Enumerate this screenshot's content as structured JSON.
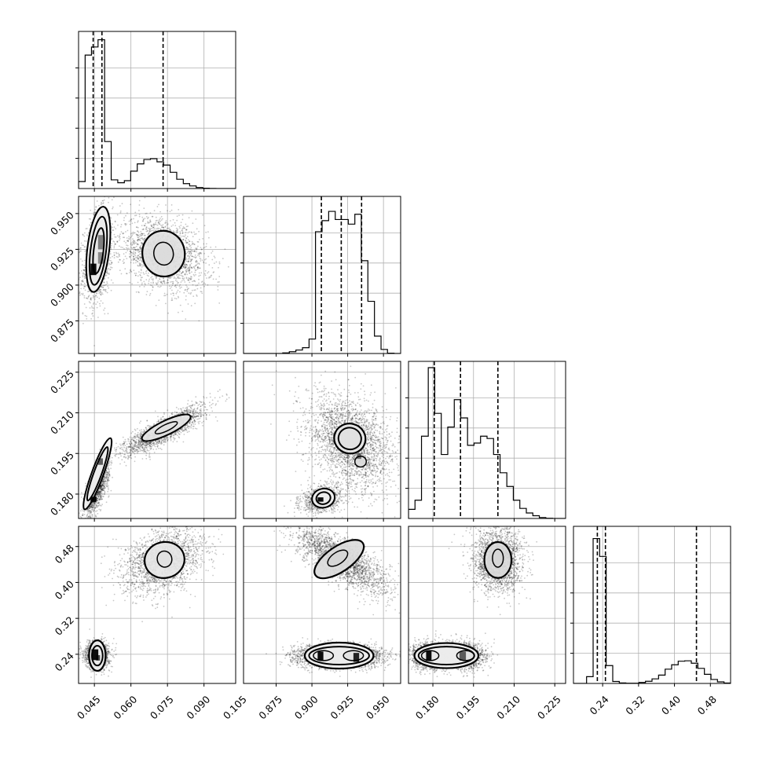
{
  "chart_data": {
    "type": "corner",
    "parameters": [
      {
        "ticks": [
          0.045,
          0.06,
          0.075,
          0.09,
          0.105
        ],
        "tick_labels": [
          "0.045",
          "0.060",
          "0.075",
          "0.090",
          "0.105"
        ],
        "range": [
          0.0385,
          0.103
        ]
      },
      {
        "ticks": [
          0.875,
          0.9,
          0.925,
          0.95
        ],
        "tick_labels": [
          "0.875",
          "0.900",
          "0.925",
          "0.950"
        ],
        "range": [
          0.8522,
          0.962
        ]
      },
      {
        "ticks": [
          0.18,
          0.195,
          0.21,
          0.225
        ],
        "tick_labels": [
          "0.180",
          "0.195",
          "0.210",
          "0.225"
        ],
        "range": [
          0.171,
          0.229
        ]
      },
      {
        "ticks": [
          0.24,
          0.32,
          0.4,
          0.48
        ],
        "tick_labels": [
          "0.24",
          "0.32",
          "0.40",
          "0.48"
        ],
        "range": [
          0.175,
          0.525
        ]
      }
    ],
    "histograms": [
      {
        "edges": [
          0.0385,
          0.0412,
          0.0438,
          0.0465,
          0.0492,
          0.0519,
          0.0546,
          0.0573,
          0.0599,
          0.0626,
          0.0653,
          0.068,
          0.0707,
          0.0734,
          0.0761,
          0.0788,
          0.0815,
          0.0841,
          0.0868,
          0.0895,
          0.0922,
          0.0949,
          0.0976,
          0.1003,
          0.103
        ],
        "counts": [
          240,
          4600,
          4880,
          5130,
          1620,
          300,
          200,
          270,
          600,
          850,
          1000,
          1030,
          920,
          810,
          560,
          320,
          170,
          90,
          35,
          12,
          5,
          0,
          0,
          0
        ],
        "quantiles": [
          0.0445,
          0.0481,
          0.0732
        ],
        "ymax": 5200
      },
      {
        "edges": [
          0.8522,
          0.8568,
          0.8613,
          0.8659,
          0.8705,
          0.8751,
          0.8796,
          0.8842,
          0.8888,
          0.8934,
          0.898,
          0.9025,
          0.9071,
          0.9117,
          0.9163,
          0.9208,
          0.9254,
          0.93,
          0.9345,
          0.9391,
          0.9437,
          0.9483,
          0.9528,
          0.9574,
          0.962
        ],
        "counts": [
          0,
          0,
          0,
          0,
          0,
          0,
          20,
          60,
          120,
          200,
          500,
          4200,
          4580,
          4900,
          4620,
          4620,
          4460,
          4800,
          3200,
          1800,
          600,
          140,
          10,
          0
        ],
        "quantiles": [
          0.9066,
          0.9205,
          0.9347
        ],
        "ymax": 5200
      },
      {
        "edges": [
          0.171,
          0.1734,
          0.1758,
          0.1783,
          0.1807,
          0.1831,
          0.1855,
          0.1879,
          0.1903,
          0.1928,
          0.1952,
          0.1976,
          0.2,
          0.2024,
          0.2048,
          0.2073,
          0.2097,
          0.2121,
          0.2145,
          0.2169,
          0.2193,
          0.2217,
          0.2242,
          0.2266,
          0.229
        ],
        "counts": [
          200,
          400,
          1800,
          3300,
          2300,
          1400,
          2000,
          2600,
          2200,
          1600,
          1650,
          1800,
          1750,
          1400,
          1000,
          700,
          400,
          220,
          120,
          60,
          20,
          5,
          0,
          0
        ],
        "quantiles": [
          0.1805,
          0.1902,
          0.204
        ],
        "ymax": 3300
      },
      {
        "edges": [
          0.175,
          0.1896,
          0.2042,
          0.2188,
          0.2333,
          0.2479,
          0.2625,
          0.2771,
          0.2917,
          0.3063,
          0.3208,
          0.3354,
          0.35,
          0.3646,
          0.3792,
          0.3937,
          0.4083,
          0.4229,
          0.4375,
          0.4521,
          0.4667,
          0.4813,
          0.4958,
          0.5104,
          0.525
        ],
        "counts": [
          0,
          0,
          170,
          3650,
          3200,
          450,
          50,
          12,
          5,
          5,
          25,
          55,
          115,
          210,
          360,
          470,
          560,
          570,
          510,
          380,
          230,
          100,
          40,
          10
        ],
        "quantiles": [
          0.2282,
          0.2462,
          0.449
        ],
        "ymax": 3800
      }
    ],
    "pairs": [
      {
        "row": 1,
        "col": 0,
        "blobs": [
          {
            "cx": 0.0465,
            "cy": 0.92,
            "sx": 0.0024,
            "sy": 0.013,
            "rho": 0.3,
            "n": 1300
          },
          {
            "cx": 0.0475,
            "cy": 0.939,
            "sx": 0.0014,
            "sy": 0.006,
            "rho": 0.0,
            "n": 250
          },
          {
            "cx": 0.0735,
            "cy": 0.922,
            "sx": 0.007,
            "sy": 0.01,
            "rho": -0.3,
            "n": 2000
          }
        ],
        "contours": [
          {
            "cx": 0.0466,
            "cy": 0.925,
            "rx": 0.0045,
            "ry": 0.03,
            "rot": 0.12,
            "w": 2
          },
          {
            "cx": 0.0466,
            "cy": 0.924,
            "rx": 0.0032,
            "ry": 0.024,
            "rot": 0.12,
            "w": 2
          },
          {
            "cx": 0.0467,
            "cy": 0.924,
            "rx": 0.002,
            "ry": 0.016,
            "rot": 0.12,
            "w": 2
          },
          {
            "cx": 0.0734,
            "cy": 0.922,
            "rx": 0.0087,
            "ry": 0.016,
            "rot": -0.15,
            "w": 2.2
          },
          {
            "cx": 0.0734,
            "cy": 0.922,
            "rx": 0.004,
            "ry": 0.008,
            "rot": -0.15,
            "w": 1.5
          }
        ],
        "dark": [
          [
            0.0446,
            0.911,
            0.0012,
            0.004,
            0.95
          ],
          [
            0.0477,
            0.93,
            0.0012,
            0.005,
            0.45
          ],
          [
            0.0477,
            0.919,
            0.0012,
            0.004,
            0.4
          ]
        ]
      },
      {
        "row": 2,
        "col": 0,
        "blobs": [
          {
            "cx": 0.046,
            "cy": 0.182,
            "sx": 0.002,
            "sy": 0.004,
            "rho": 0.7,
            "n": 1300
          },
          {
            "cx": 0.0735,
            "cy": 0.2035,
            "sx": 0.0065,
            "sy": 0.0035,
            "rho": 0.85,
            "n": 2000
          }
        ],
        "contours": [
          {
            "cx": 0.0463,
            "cy": 0.1875,
            "rx": 0.0024,
            "ry": 0.014,
            "rot": 0.35,
            "w": 2
          },
          {
            "cx": 0.0463,
            "cy": 0.1875,
            "rx": 0.0016,
            "ry": 0.0105,
            "rot": 0.35,
            "w": 2
          },
          {
            "cx": 0.0745,
            "cy": 0.2045,
            "rx": 0.011,
            "ry": 0.0026,
            "rot": -0.45,
            "w": 2
          },
          {
            "cx": 0.0745,
            "cy": 0.2045,
            "rx": 0.005,
            "ry": 0.0012,
            "rot": -0.45,
            "w": 1.5
          }
        ],
        "dark": [
          [
            0.0446,
            0.178,
            0.0012,
            0.001,
            0.95
          ],
          [
            0.0475,
            0.192,
            0.001,
            0.0012,
            0.6
          ]
        ]
      },
      {
        "row": 3,
        "col": 0,
        "blobs": [
          {
            "cx": 0.046,
            "cy": 0.238,
            "sx": 0.002,
            "sy": 0.012,
            "rho": 0.0,
            "n": 1400
          },
          {
            "cx": 0.0735,
            "cy": 0.448,
            "sx": 0.0065,
            "sy": 0.028,
            "rho": 0.35,
            "n": 2000
          }
        ],
        "contours": [
          {
            "cx": 0.0462,
            "cy": 0.237,
            "rx": 0.0034,
            "ry": 0.034,
            "rot": 0.0,
            "w": 2.2
          },
          {
            "cx": 0.0462,
            "cy": 0.237,
            "rx": 0.0022,
            "ry": 0.022,
            "rot": 0.0,
            "w": 2
          },
          {
            "cx": 0.0738,
            "cy": 0.45,
            "rx": 0.0082,
            "ry": 0.04,
            "rot": -0.2,
            "w": 2.2
          },
          {
            "cx": 0.0738,
            "cy": 0.452,
            "rx": 0.003,
            "ry": 0.018,
            "rot": -0.2,
            "w": 1.5
          }
        ],
        "dark": [
          [
            0.0452,
            0.239,
            0.0014,
            0.012,
            0.95
          ],
          [
            0.0465,
            0.232,
            0.0008,
            0.006,
            0.7
          ]
        ]
      },
      {
        "row": 2,
        "col": 1,
        "blobs": [
          {
            "cx": 0.907,
            "cy": 0.178,
            "sx": 0.006,
            "sy": 0.002,
            "rho": 0.3,
            "n": 900
          },
          {
            "cx": 0.927,
            "cy": 0.199,
            "sx": 0.012,
            "sy": 0.007,
            "rho": -0.3,
            "n": 2600
          }
        ],
        "contours": [
          {
            "cx": 0.908,
            "cy": 0.1785,
            "rx": 0.008,
            "ry": 0.0035,
            "rot": -0.25,
            "w": 2
          },
          {
            "cx": 0.908,
            "cy": 0.1785,
            "rx": 0.005,
            "ry": 0.0022,
            "rot": -0.25,
            "w": 2
          },
          {
            "cx": 0.9265,
            "cy": 0.2005,
            "rx": 0.011,
            "ry": 0.0055,
            "rot": 0.25,
            "w": 2.2
          },
          {
            "cx": 0.9265,
            "cy": 0.2005,
            "rx": 0.008,
            "ry": 0.004,
            "rot": 0.25,
            "w": 2
          },
          {
            "cx": 0.934,
            "cy": 0.192,
            "rx": 0.004,
            "ry": 0.002,
            "rot": 0.0,
            "w": 1.5
          }
        ],
        "dark": [
          [
            0.906,
            0.178,
            0.002,
            0.0008,
            0.95
          ],
          [
            0.933,
            0.194,
            0.0015,
            0.001,
            0.5
          ]
        ]
      },
      {
        "row": 3,
        "col": 1,
        "blobs": [
          {
            "cx": 0.908,
            "cy": 0.236,
            "sx": 0.009,
            "sy": 0.01,
            "rho": 0.0,
            "n": 1500
          },
          {
            "cx": 0.93,
            "cy": 0.236,
            "sx": 0.009,
            "sy": 0.01,
            "rho": 0.0,
            "n": 1300
          },
          {
            "cx": 0.92,
            "cy": 0.45,
            "sx": 0.013,
            "sy": 0.03,
            "rho": -0.75,
            "n": 2200
          }
        ],
        "contours": [
          {
            "cx": 0.919,
            "cy": 0.237,
            "rx": 0.024,
            "ry": 0.029,
            "rot": 0.0,
            "w": 2.2
          },
          {
            "cx": 0.919,
            "cy": 0.237,
            "rx": 0.021,
            "ry": 0.02,
            "rot": 0.0,
            "w": 2
          },
          {
            "cx": 0.908,
            "cy": 0.237,
            "rx": 0.007,
            "ry": 0.011,
            "rot": 0.0,
            "w": 1.5
          },
          {
            "cx": 0.929,
            "cy": 0.237,
            "rx": 0.007,
            "ry": 0.011,
            "rot": 0.0,
            "w": 1.5
          },
          {
            "cx": 0.919,
            "cy": 0.452,
            "rx": 0.02,
            "ry": 0.028,
            "rot": -0.6,
            "w": 2.2
          },
          {
            "cx": 0.918,
            "cy": 0.454,
            "rx": 0.008,
            "ry": 0.013,
            "rot": -0.6,
            "w": 1.5
          }
        ],
        "dark": [
          [
            0.906,
            0.236,
            0.002,
            0.01,
            0.95
          ],
          [
            0.931,
            0.233,
            0.002,
            0.01,
            0.85
          ]
        ]
      },
      {
        "row": 3,
        "col": 2,
        "blobs": [
          {
            "cx": 0.179,
            "cy": 0.236,
            "sx": 0.003,
            "sy": 0.012,
            "rho": 0.0,
            "n": 1500
          },
          {
            "cx": 0.192,
            "cy": 0.236,
            "sx": 0.003,
            "sy": 0.012,
            "rho": 0.0,
            "n": 1300
          },
          {
            "cx": 0.204,
            "cy": 0.45,
            "sx": 0.0035,
            "sy": 0.028,
            "rho": 0.0,
            "n": 2200
          }
        ],
        "contours": [
          {
            "cx": 0.185,
            "cy": 0.237,
            "rx": 0.0118,
            "ry": 0.028,
            "rot": 0.0,
            "w": 2.2
          },
          {
            "cx": 0.185,
            "cy": 0.237,
            "rx": 0.0103,
            "ry": 0.02,
            "rot": 0.0,
            "w": 2
          },
          {
            "cx": 0.179,
            "cy": 0.237,
            "rx": 0.0032,
            "ry": 0.011,
            "rot": 0.0,
            "w": 1.5
          },
          {
            "cx": 0.192,
            "cy": 0.237,
            "rx": 0.0032,
            "ry": 0.011,
            "rot": 0.0,
            "w": 1.5
          },
          {
            "cx": 0.204,
            "cy": 0.45,
            "rx": 0.005,
            "ry": 0.04,
            "rot": 0.0,
            "w": 2.2
          },
          {
            "cx": 0.204,
            "cy": 0.454,
            "rx": 0.002,
            "ry": 0.02,
            "rot": 0.0,
            "w": 1.5
          }
        ],
        "dark": [
          [
            0.1785,
            0.236,
            0.001,
            0.011,
            0.95
          ],
          [
            0.191,
            0.236,
            0.0012,
            0.01,
            0.6
          ]
        ]
      }
    ],
    "grid": true
  }
}
